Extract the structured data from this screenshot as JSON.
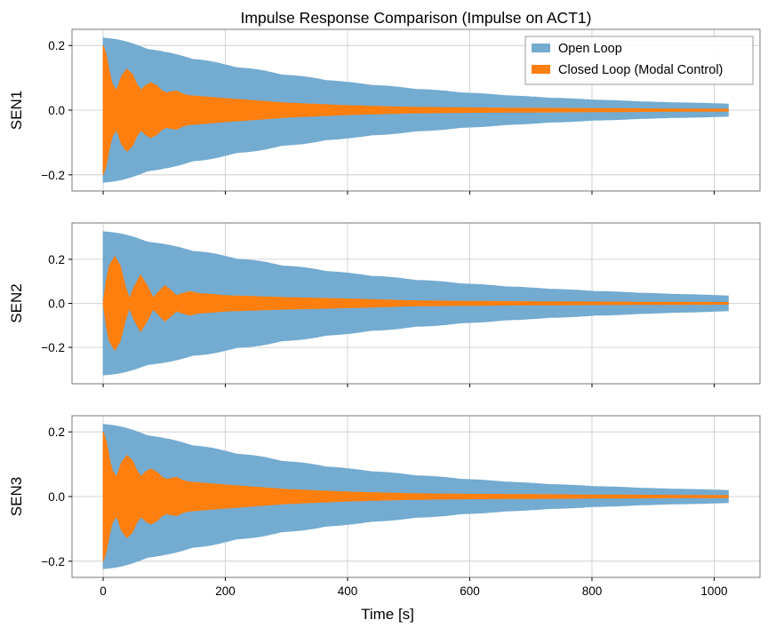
{
  "chart_data": [
    {
      "type": "area",
      "title": "Impulse Response Comparison (Impulse on ACT1)",
      "ylabel": "SEN1",
      "xlabel": "",
      "xlim": [
        -51,
        1075
      ],
      "ylim": [
        -0.25,
        0.25
      ],
      "yticks": [
        -0.2,
        0.0,
        0.2
      ],
      "ytick_labels": [
        "−0.2",
        "0.0",
        "0.2"
      ],
      "grid": true,
      "legend": {
        "placement": "top-right",
        "entries": [
          "Open Loop",
          "Closed Loop (Modal Control)"
        ]
      },
      "series": [
        {
          "name": "Open Loop",
          "color": "#74abd0",
          "envelope": [
            [
              0,
              0.23
            ],
            [
              100,
              0.18
            ],
            [
              200,
              0.141
            ],
            [
              300,
              0.11
            ],
            [
              400,
              0.086
            ],
            [
              500,
              0.068
            ],
            [
              600,
              0.053
            ],
            [
              700,
              0.041
            ],
            [
              800,
              0.032
            ],
            [
              900,
              0.025
            ],
            [
              1023,
              0.019
            ]
          ]
        },
        {
          "name": "Closed Loop (Modal Control)",
          "color": "#ff7f0e",
          "envelope": [
            [
              0,
              0.2
            ],
            [
              5,
              0.17
            ],
            [
              10,
              0.12
            ],
            [
              15,
              0.08
            ],
            [
              22,
              0.06
            ],
            [
              30,
              0.105
            ],
            [
              39,
              0.127
            ],
            [
              48,
              0.11
            ],
            [
              55,
              0.08
            ],
            [
              62,
              0.062
            ],
            [
              70,
              0.077
            ],
            [
              78,
              0.085
            ],
            [
              88,
              0.075
            ],
            [
              96,
              0.06
            ],
            [
              104,
              0.053
            ],
            [
              112,
              0.057
            ],
            [
              120,
              0.059
            ],
            [
              130,
              0.05
            ],
            [
              140,
              0.045
            ],
            [
              200,
              0.036
            ],
            [
              300,
              0.022
            ],
            [
              400,
              0.014
            ],
            [
              500,
              0.009
            ],
            [
              600,
              0.007
            ],
            [
              800,
              0.005
            ],
            [
              1023,
              0.003
            ]
          ]
        }
      ]
    },
    {
      "type": "area",
      "ylabel": "SEN2",
      "xlim": [
        -51,
        1075
      ],
      "ylim": [
        -0.365,
        0.365
      ],
      "yticks": [
        -0.2,
        0.0,
        0.2
      ],
      "ytick_labels": [
        "−0.2",
        "0.0",
        "0.2"
      ],
      "grid": true,
      "series": [
        {
          "name": "Open Loop",
          "color": "#74abd0",
          "envelope": [
            [
              0,
              0.335
            ],
            [
              100,
              0.268
            ],
            [
              200,
              0.215
            ],
            [
              300,
              0.172
            ],
            [
              400,
              0.137
            ],
            [
              500,
              0.11
            ],
            [
              600,
              0.088
            ],
            [
              700,
              0.07
            ],
            [
              800,
              0.056
            ],
            [
              900,
              0.045
            ],
            [
              1023,
              0.034
            ]
          ]
        },
        {
          "name": "Closed Loop (Modal Control)",
          "color": "#ff7f0e",
          "envelope": [
            [
              0,
              0.0
            ],
            [
              5,
              0.1
            ],
            [
              10,
              0.17
            ],
            [
              19,
              0.213
            ],
            [
              28,
              0.17
            ],
            [
              36,
              0.08
            ],
            [
              43,
              0.02
            ],
            [
              50,
              0.07
            ],
            [
              61,
              0.128
            ],
            [
              72,
              0.08
            ],
            [
              82,
              0.025
            ],
            [
              90,
              0.05
            ],
            [
              101,
              0.081
            ],
            [
              110,
              0.06
            ],
            [
              120,
              0.035
            ],
            [
              130,
              0.045
            ],
            [
              142,
              0.054
            ],
            [
              155,
              0.045
            ],
            [
              180,
              0.04
            ],
            [
              200,
              0.035
            ],
            [
              300,
              0.026
            ],
            [
              400,
              0.02
            ],
            [
              500,
              0.012
            ],
            [
              600,
              0.009
            ],
            [
              800,
              0.006
            ],
            [
              1023,
              0.004
            ]
          ]
        }
      ]
    },
    {
      "type": "area",
      "ylabel": "SEN3",
      "xlabel": "Time [s]",
      "xlim": [
        -51,
        1075
      ],
      "ylim": [
        -0.25,
        0.25
      ],
      "xticks": [
        0,
        200,
        400,
        600,
        800,
        1000
      ],
      "xtick_labels": [
        "0",
        "200",
        "400",
        "600",
        "800",
        "1000"
      ],
      "yticks": [
        -0.2,
        0.0,
        0.2
      ],
      "ytick_labels": [
        "−0.2",
        "0.0",
        "0.2"
      ],
      "grid": true,
      "series": [
        {
          "name": "Open Loop",
          "color": "#74abd0",
          "envelope": [
            [
              0,
              0.23
            ],
            [
              100,
              0.18
            ],
            [
              200,
              0.141
            ],
            [
              300,
              0.11
            ],
            [
              400,
              0.086
            ],
            [
              500,
              0.068
            ],
            [
              600,
              0.053
            ],
            [
              700,
              0.041
            ],
            [
              800,
              0.032
            ],
            [
              900,
              0.025
            ],
            [
              1023,
              0.019
            ]
          ]
        },
        {
          "name": "Closed Loop (Modal Control)",
          "color": "#ff7f0e",
          "envelope": [
            [
              0,
              0.2
            ],
            [
              5,
              0.17
            ],
            [
              10,
              0.12
            ],
            [
              15,
              0.08
            ],
            [
              22,
              0.06
            ],
            [
              30,
              0.105
            ],
            [
              39,
              0.127
            ],
            [
              48,
              0.11
            ],
            [
              55,
              0.08
            ],
            [
              62,
              0.062
            ],
            [
              70,
              0.077
            ],
            [
              78,
              0.085
            ],
            [
              88,
              0.075
            ],
            [
              96,
              0.06
            ],
            [
              104,
              0.053
            ],
            [
              112,
              0.057
            ],
            [
              120,
              0.059
            ],
            [
              130,
              0.05
            ],
            [
              140,
              0.045
            ],
            [
              200,
              0.036
            ],
            [
              300,
              0.022
            ],
            [
              400,
              0.014
            ],
            [
              500,
              0.009
            ],
            [
              600,
              0.007
            ],
            [
              800,
              0.005
            ],
            [
              1023,
              0.003
            ]
          ]
        }
      ]
    }
  ]
}
